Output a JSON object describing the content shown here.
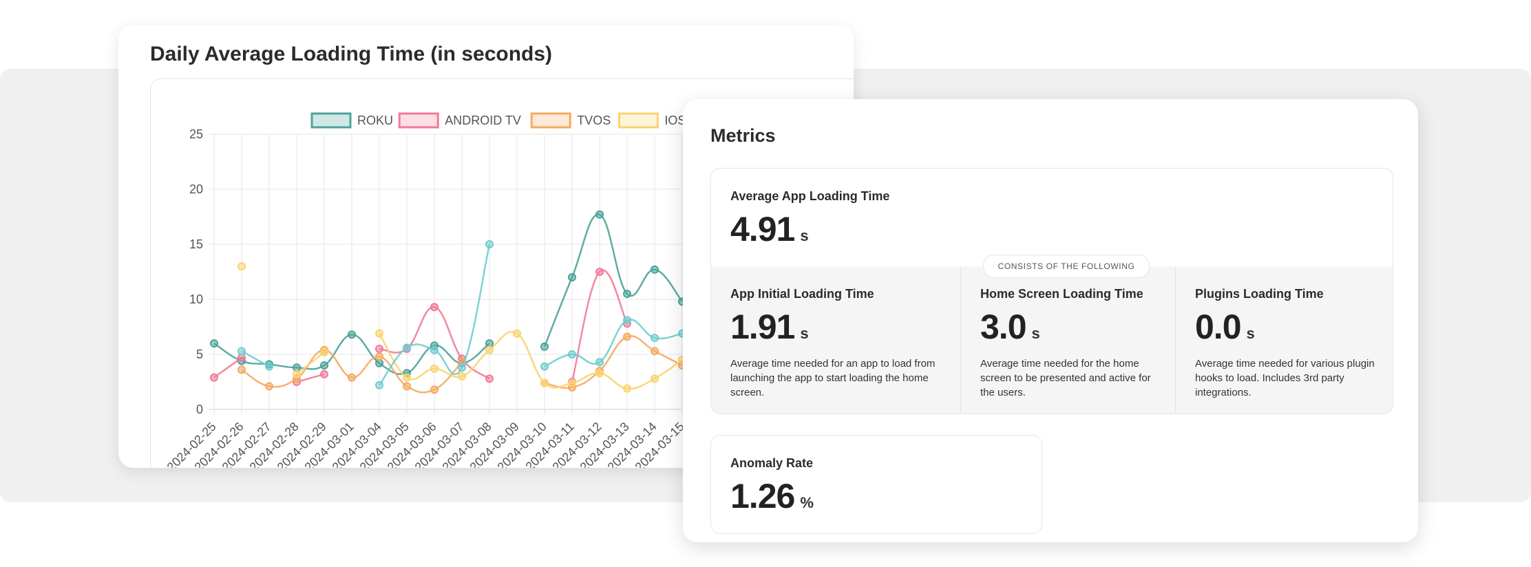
{
  "chart_card": {
    "title": "Daily Average Loading Time (in seconds)"
  },
  "chart_data": {
    "type": "line",
    "title": "Daily Average Loading Time (in seconds)",
    "xlabel": "",
    "ylabel": "",
    "ylim": [
      0,
      25
    ],
    "y_ticks": [
      0,
      5,
      10,
      15,
      20,
      25
    ],
    "grid": true,
    "legend_position": "top",
    "categories": [
      "2024-02-25",
      "2024-02-26",
      "2024-02-27",
      "2024-02-28",
      "2024-02-29",
      "2024-03-01",
      "2024-03-04",
      "2024-03-05",
      "2024-03-06",
      "2024-03-07",
      "2024-03-08",
      "2024-03-09",
      "2024-03-10",
      "2024-03-11",
      "2024-03-12",
      "2024-03-13",
      "2024-03-14",
      "2024-03-15"
    ],
    "series": [
      {
        "name": "ROKU",
        "color": "#4ba39a",
        "values": [
          6.0,
          4.4,
          4.1,
          3.8,
          4.0,
          6.8,
          4.2,
          3.3,
          5.8,
          4.2,
          6.0,
          null,
          5.7,
          12.0,
          17.7,
          10.5,
          12.7,
          9.8
        ]
      },
      {
        "name": "ANDROID TV",
        "color": "#f27a97",
        "values": [
          2.9,
          4.7,
          null,
          2.5,
          3.2,
          null,
          5.5,
          5.5,
          9.3,
          4.6,
          2.8,
          null,
          null,
          2.5,
          12.5,
          7.8,
          null,
          null
        ]
      },
      {
        "name": "TVOS",
        "color": "#f5a961",
        "values": [
          null,
          3.6,
          2.1,
          2.8,
          5.4,
          2.9,
          4.8,
          2.1,
          1.8,
          4.3,
          null,
          null,
          2.4,
          2.0,
          3.5,
          6.6,
          5.3,
          4.0
        ]
      },
      {
        "name": "IOS",
        "color": "#f9d36e",
        "values": [
          null,
          13.0,
          null,
          3.2,
          5.2,
          null,
          6.9,
          2.9,
          3.7,
          3.0,
          5.4,
          6.9,
          2.4,
          2.4,
          3.3,
          1.9,
          2.8,
          4.5
        ]
      },
      {
        "name": "",
        "color": "#6fcdcf",
        "values": [
          null,
          5.3,
          3.9,
          null,
          null,
          null,
          2.2,
          5.6,
          5.4,
          3.8,
          15.0,
          null,
          3.9,
          5.0,
          4.3,
          8.1,
          6.5,
          6.9
        ]
      }
    ]
  },
  "metrics": {
    "title": "Metrics",
    "average": {
      "label": "Average App Loading Time",
      "value": "4.91",
      "unit": "s"
    },
    "pill": "CONSISTS OF THE FOLLOWING",
    "sub": [
      {
        "label": "App Initial Loading Time",
        "value": "1.91",
        "unit": "s",
        "desc": "Average time needed for an app to load from launching the app to start loading the home screen."
      },
      {
        "label": "Home Screen Loading Time",
        "value": "3.0",
        "unit": "s",
        "desc": "Average time needed for the home screen to be presented and active for the users."
      },
      {
        "label": "Plugins Loading Time",
        "value": "0.0",
        "unit": "s",
        "desc": "Average time needed for various plugin hooks to load. Includes 3rd party integrations."
      }
    ],
    "anomaly": {
      "label": "Anomaly Rate",
      "value": "1.26",
      "unit": "%"
    }
  }
}
